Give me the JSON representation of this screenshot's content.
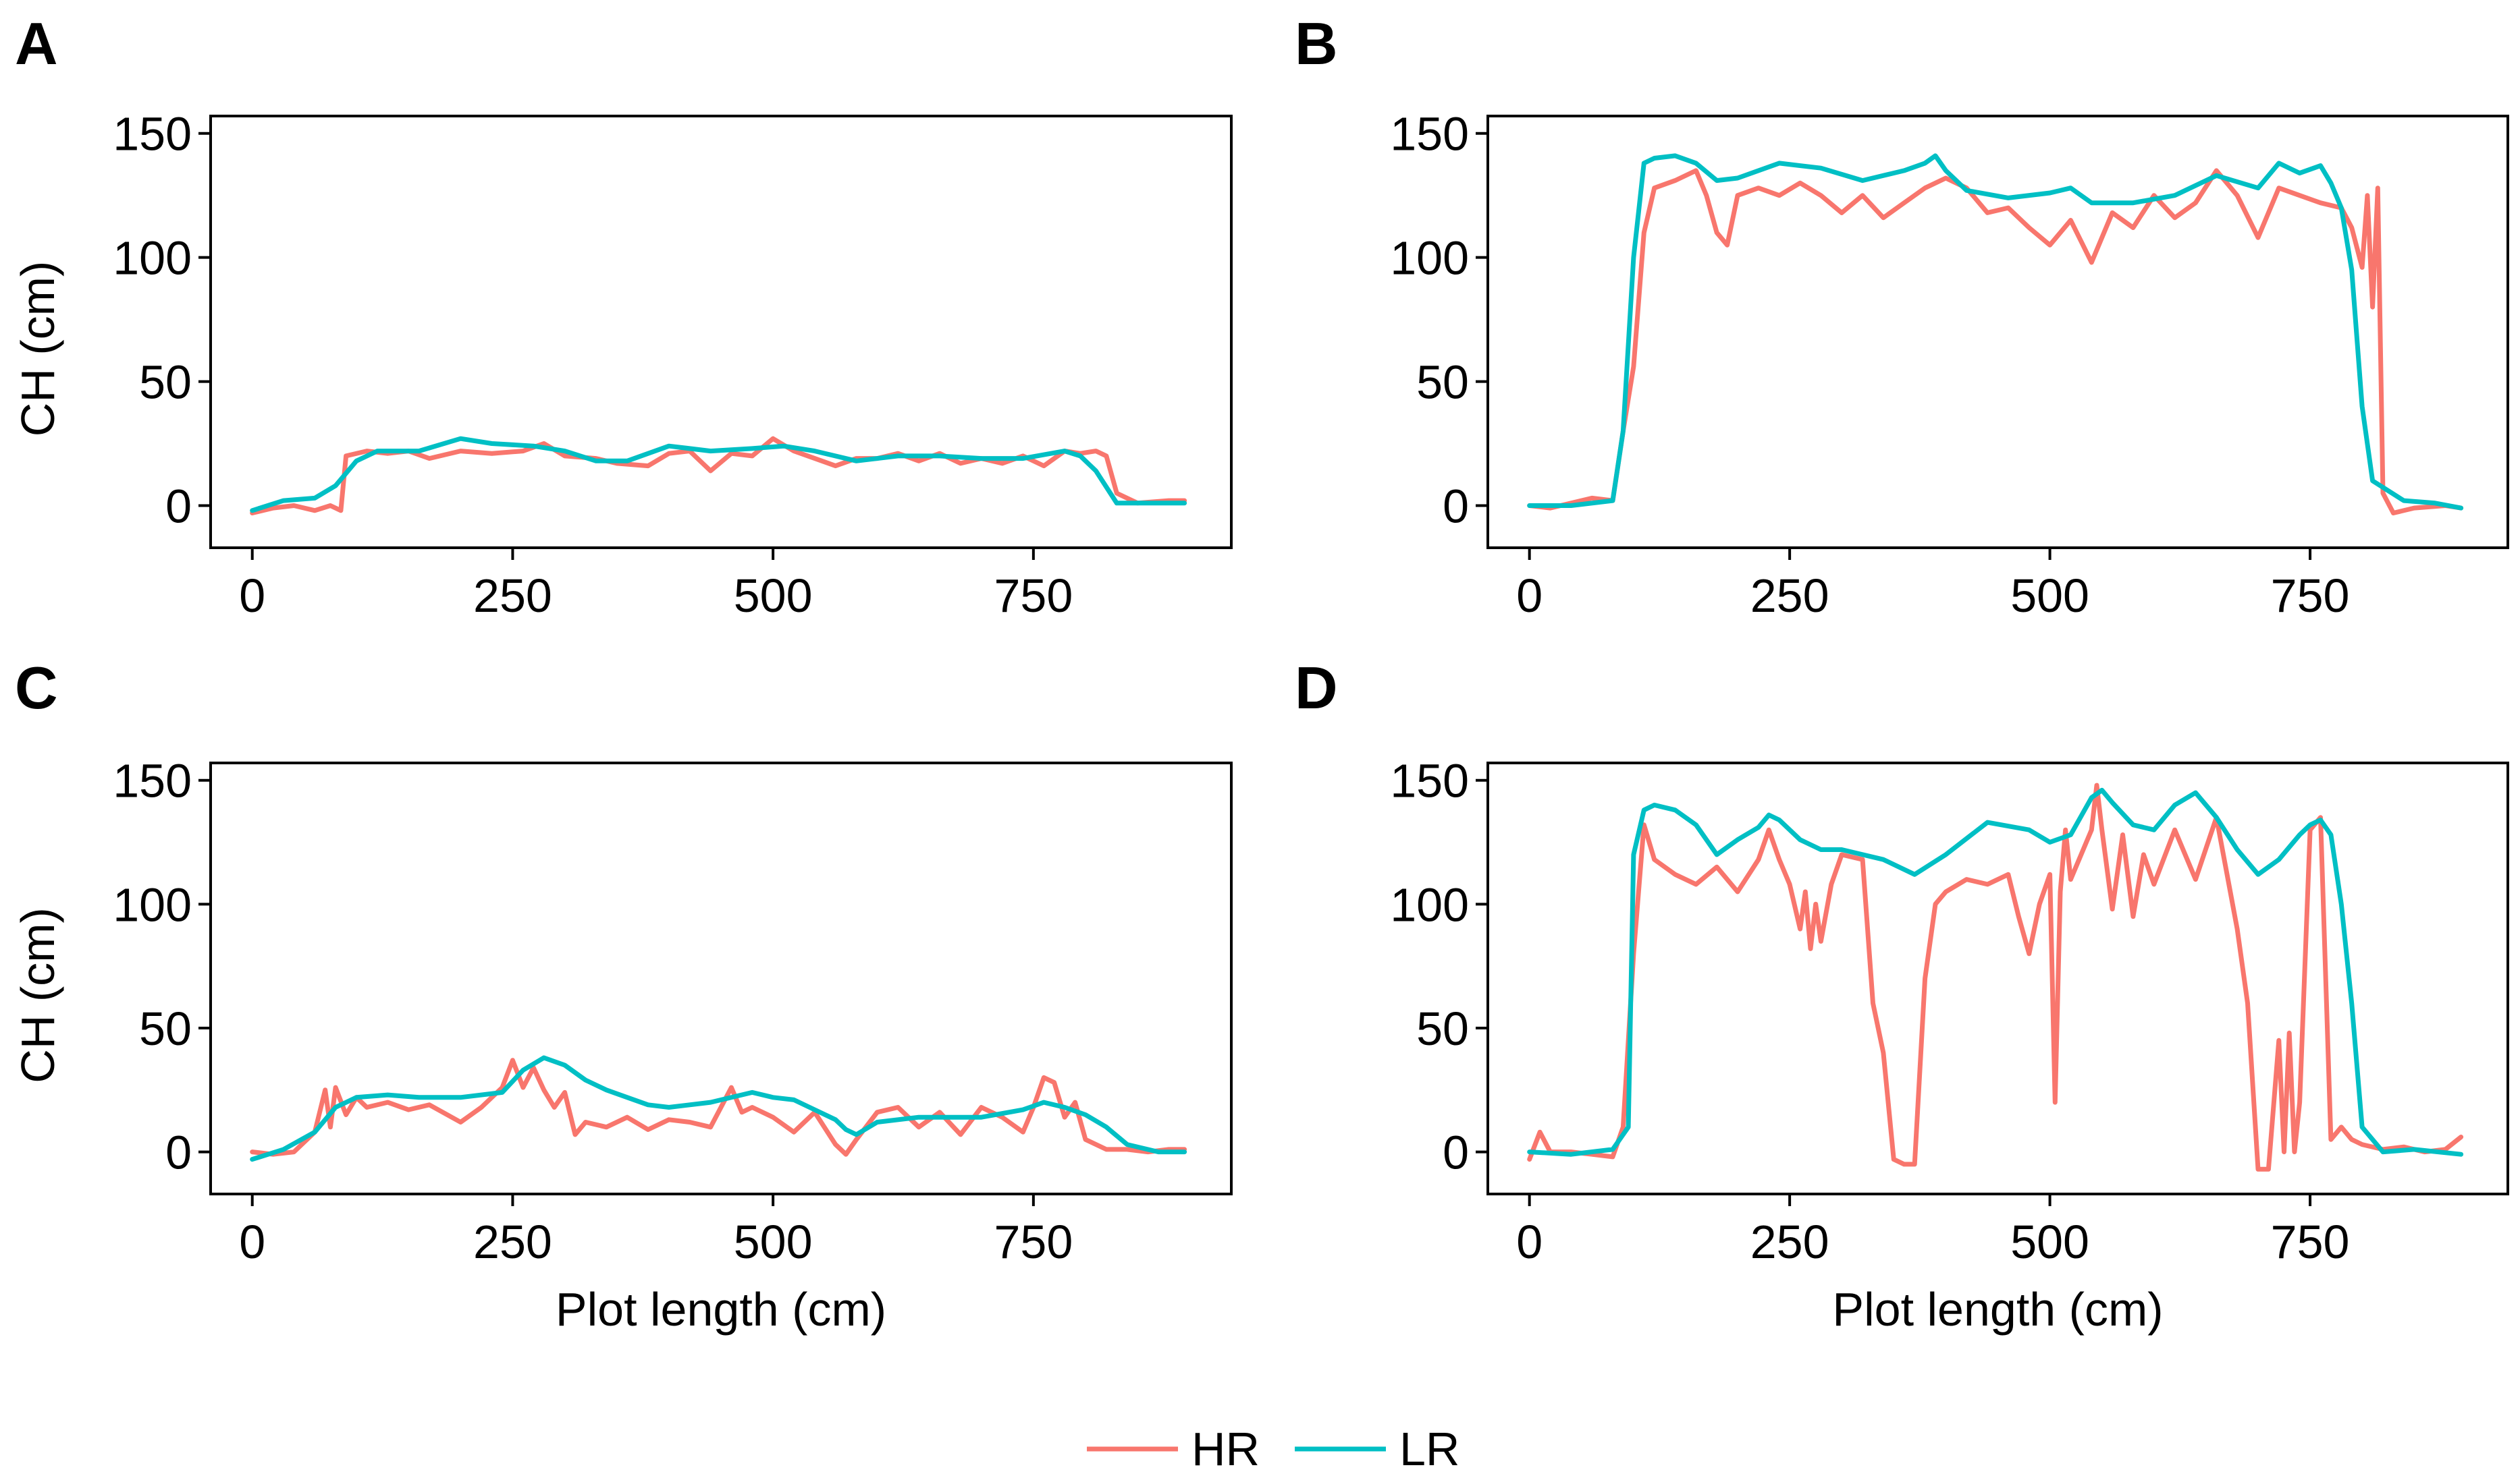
{
  "colors": {
    "HR": "#F8766D",
    "LR": "#00BFC4"
  },
  "legend": {
    "items": [
      {
        "key": "HR",
        "label": "HR"
      },
      {
        "key": "LR",
        "label": "LR"
      }
    ]
  },
  "chart_data": [
    {
      "panel": "A",
      "type": "line",
      "xlabel": "",
      "ylabel": "CH (cm)",
      "xlim": [
        -40,
        940
      ],
      "ylim": [
        -17,
        157
      ],
      "xticks": [
        0,
        250,
        500,
        750
      ],
      "yticks": [
        0,
        50,
        100,
        150
      ],
      "series": [
        {
          "name": "HR",
          "x": [
            0,
            20,
            40,
            60,
            75,
            85,
            90,
            110,
            130,
            150,
            170,
            200,
            230,
            260,
            280,
            300,
            330,
            350,
            380,
            400,
            420,
            440,
            460,
            480,
            500,
            520,
            540,
            560,
            580,
            600,
            620,
            640,
            660,
            680,
            700,
            720,
            740,
            760,
            780,
            795,
            810,
            820,
            830,
            850,
            880,
            895
          ],
          "y": [
            -3,
            -1,
            0,
            -2,
            0,
            -2,
            20,
            22,
            21,
            22,
            19,
            22,
            21,
            22,
            25,
            20,
            19,
            17,
            16,
            21,
            22,
            14,
            21,
            20,
            27,
            22,
            19,
            16,
            19,
            19,
            21,
            18,
            21,
            17,
            19,
            17,
            20,
            16,
            22,
            21,
            22,
            20,
            5,
            1,
            2,
            2
          ]
        },
        {
          "name": "LR",
          "x": [
            0,
            30,
            60,
            80,
            100,
            120,
            160,
            200,
            230,
            270,
            300,
            330,
            360,
            400,
            440,
            480,
            510,
            540,
            580,
            620,
            660,
            700,
            740,
            780,
            795,
            810,
            830,
            860,
            895
          ],
          "y": [
            -2,
            2,
            3,
            8,
            18,
            22,
            22,
            27,
            25,
            24,
            22,
            18,
            18,
            24,
            22,
            23,
            24,
            22,
            18,
            20,
            20,
            19,
            19,
            22,
            20,
            14,
            1,
            1,
            1
          ]
        }
      ]
    },
    {
      "panel": "B",
      "type": "line",
      "xlabel": "",
      "ylabel": "",
      "xlim": [
        -40,
        940
      ],
      "ylim": [
        -17,
        157
      ],
      "xticks": [
        0,
        250,
        500,
        750
      ],
      "yticks": [
        0,
        50,
        100,
        150
      ],
      "series": [
        {
          "name": "HR",
          "x": [
            0,
            20,
            40,
            60,
            80,
            90,
            100,
            110,
            120,
            140,
            160,
            170,
            180,
            190,
            200,
            220,
            240,
            260,
            280,
            300,
            320,
            340,
            360,
            380,
            400,
            420,
            440,
            460,
            480,
            500,
            520,
            540,
            560,
            580,
            600,
            620,
            640,
            660,
            680,
            700,
            720,
            740,
            760,
            780,
            790,
            800,
            805,
            810,
            815,
            820,
            830,
            850,
            880,
            895
          ],
          "y": [
            0,
            -1,
            1,
            3,
            2,
            30,
            56,
            110,
            128,
            131,
            135,
            125,
            110,
            105,
            125,
            128,
            125,
            130,
            125,
            118,
            125,
            116,
            122,
            128,
            132,
            128,
            118,
            120,
            112,
            105,
            115,
            98,
            118,
            112,
            125,
            116,
            122,
            135,
            125,
            108,
            128,
            125,
            122,
            120,
            112,
            96,
            125,
            80,
            128,
            5,
            -3,
            -1,
            0,
            -1
          ]
        },
        {
          "name": "LR",
          "x": [
            0,
            40,
            80,
            90,
            100,
            110,
            120,
            140,
            160,
            180,
            200,
            240,
            280,
            320,
            360,
            380,
            390,
            400,
            420,
            460,
            500,
            520,
            540,
            580,
            620,
            660,
            700,
            720,
            740,
            760,
            770,
            780,
            790,
            800,
            810,
            840,
            870,
            895
          ],
          "y": [
            0,
            0,
            2,
            30,
            100,
            138,
            140,
            141,
            138,
            131,
            132,
            138,
            136,
            131,
            135,
            138,
            141,
            135,
            127,
            124,
            126,
            128,
            122,
            122,
            125,
            133,
            128,
            138,
            134,
            137,
            130,
            120,
            95,
            40,
            10,
            2,
            1,
            -1
          ]
        }
      ]
    },
    {
      "panel": "C",
      "type": "line",
      "xlabel": "Plot length (cm)",
      "ylabel": "CH (cm)",
      "xlim": [
        -40,
        940
      ],
      "ylim": [
        -17,
        157
      ],
      "xticks": [
        0,
        250,
        500,
        750
      ],
      "yticks": [
        0,
        50,
        100,
        150
      ],
      "series": [
        {
          "name": "HR",
          "x": [
            0,
            20,
            40,
            60,
            70,
            75,
            80,
            90,
            100,
            110,
            130,
            150,
            170,
            200,
            220,
            240,
            250,
            260,
            270,
            280,
            290,
            300,
            310,
            320,
            340,
            360,
            380,
            400,
            420,
            440,
            460,
            470,
            480,
            500,
            520,
            540,
            560,
            570,
            580,
            600,
            620,
            640,
            660,
            680,
            700,
            720,
            740,
            750,
            760,
            770,
            780,
            790,
            800,
            820,
            840,
            860,
            880,
            895
          ],
          "y": [
            0,
            -1,
            0,
            8,
            25,
            10,
            26,
            15,
            22,
            18,
            20,
            17,
            19,
            12,
            18,
            26,
            37,
            26,
            34,
            25,
            18,
            24,
            7,
            12,
            10,
            14,
            9,
            13,
            12,
            10,
            26,
            16,
            18,
            14,
            8,
            16,
            3,
            -1,
            5,
            16,
            18,
            10,
            16,
            7,
            18,
            14,
            8,
            18,
            30,
            28,
            14,
            20,
            5,
            1,
            1,
            0,
            1,
            1
          ]
        },
        {
          "name": "LR",
          "x": [
            0,
            30,
            60,
            80,
            100,
            130,
            160,
            200,
            240,
            260,
            280,
            300,
            320,
            340,
            360,
            380,
            400,
            440,
            480,
            500,
            520,
            540,
            560,
            570,
            580,
            600,
            640,
            700,
            740,
            760,
            780,
            800,
            820,
            840,
            870,
            895
          ],
          "y": [
            -3,
            1,
            8,
            18,
            22,
            23,
            22,
            22,
            24,
            33,
            38,
            35,
            29,
            25,
            22,
            19,
            18,
            20,
            24,
            22,
            21,
            17,
            13,
            9,
            7,
            12,
            14,
            14,
            17,
            20,
            18,
            15,
            10,
            3,
            0,
            0
          ]
        }
      ]
    },
    {
      "panel": "D",
      "type": "line",
      "xlabel": "Plot length (cm)",
      "ylabel": "",
      "xlim": [
        -40,
        940
      ],
      "ylim": [
        -17,
        157
      ],
      "xticks": [
        0,
        250,
        500,
        750
      ],
      "yticks": [
        0,
        50,
        100,
        150
      ],
      "series": [
        {
          "name": "HR",
          "x": [
            0,
            10,
            20,
            40,
            60,
            80,
            90,
            100,
            110,
            120,
            140,
            160,
            180,
            200,
            220,
            230,
            240,
            250,
            260,
            265,
            270,
            275,
            280,
            290,
            300,
            320,
            330,
            340,
            350,
            360,
            370,
            380,
            390,
            400,
            420,
            440,
            460,
            470,
            480,
            490,
            500,
            505,
            510,
            515,
            520,
            540,
            545,
            550,
            560,
            570,
            580,
            590,
            600,
            620,
            640,
            660,
            680,
            690,
            700,
            710,
            720,
            725,
            730,
            735,
            740,
            750,
            760,
            770,
            780,
            790,
            800,
            820,
            840,
            860,
            880,
            895
          ],
          "y": [
            -3,
            8,
            0,
            0,
            -1,
            -2,
            10,
            80,
            132,
            118,
            112,
            108,
            115,
            105,
            118,
            130,
            118,
            108,
            90,
            105,
            82,
            100,
            85,
            108,
            120,
            118,
            60,
            40,
            -3,
            -5,
            -5,
            70,
            100,
            105,
            110,
            108,
            112,
            95,
            80,
            100,
            112,
            20,
            105,
            130,
            110,
            130,
            148,
            130,
            98,
            128,
            95,
            120,
            108,
            130,
            110,
            135,
            90,
            60,
            -7,
            -7,
            45,
            0,
            48,
            0,
            20,
            130,
            135,
            5,
            10,
            5,
            3,
            1,
            2,
            0,
            1,
            6
          ]
        },
        {
          "name": "LR",
          "x": [
            0,
            40,
            80,
            95,
            100,
            110,
            120,
            140,
            160,
            180,
            200,
            220,
            230,
            240,
            260,
            280,
            300,
            340,
            370,
            400,
            440,
            480,
            500,
            520,
            540,
            550,
            560,
            580,
            600,
            620,
            640,
            660,
            680,
            700,
            720,
            740,
            750,
            760,
            770,
            780,
            790,
            800,
            820,
            850,
            895
          ],
          "y": [
            0,
            -1,
            1,
            10,
            120,
            138,
            140,
            138,
            132,
            120,
            126,
            131,
            136,
            134,
            126,
            122,
            122,
            118,
            112,
            120,
            133,
            130,
            125,
            128,
            143,
            146,
            141,
            132,
            130,
            140,
            145,
            135,
            122,
            112,
            118,
            128,
            132,
            134,
            128,
            100,
            60,
            10,
            0,
            1,
            -1
          ]
        }
      ]
    }
  ]
}
